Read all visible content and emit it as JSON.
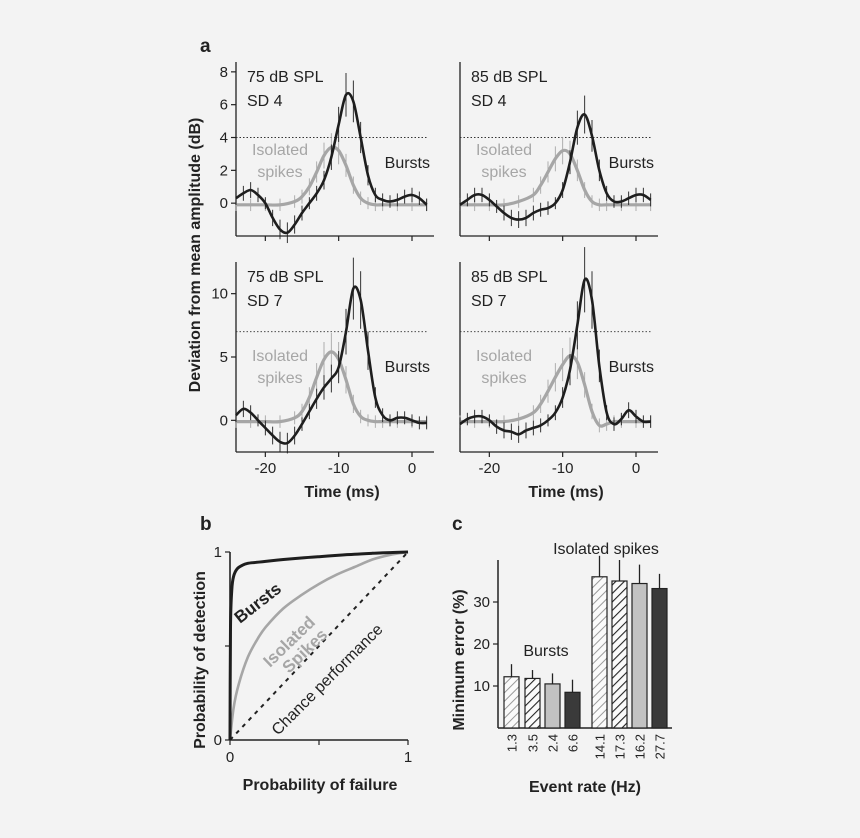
{
  "colors": {
    "background": "#f3f3f3",
    "bursts": "#1e1e1e",
    "isolated": "#a6a6a6",
    "axis": "#222222"
  },
  "panel_labels": {
    "a": "a",
    "b": "b",
    "c": "c"
  },
  "chart_data": [
    {
      "type": "line",
      "panel": "a",
      "ylabel": "Deviation from mean amplitude (dB)",
      "xlabel": "Time (ms)",
      "xticks": [
        -20,
        -10,
        0
      ],
      "xlim": [
        -24,
        3
      ],
      "subplots": [
        {
          "title_line1": "75 dB SPL",
          "title_line2": "SD 4",
          "ylim": [
            -2,
            8.6
          ],
          "yticks": [
            0,
            2,
            4,
            6,
            8
          ],
          "threshold": 4,
          "isolated_label_line1": "Isolated",
          "isolated_label_line2": "spikes",
          "bursts_label": "Bursts",
          "series": [
            {
              "name": "Bursts",
              "x": [
                -24,
                -23,
                -22,
                -21,
                -20,
                -19,
                -18,
                -17,
                -16,
                -15,
                -14,
                -13,
                -12,
                -11,
                -10,
                -9,
                -8,
                -7,
                -6,
                -5,
                -4,
                -3,
                -2,
                -1,
                0,
                1,
                2
              ],
              "values": [
                0.3,
                0.6,
                0.8,
                0.5,
                0,
                -0.9,
                -1.6,
                -1.8,
                -1.3,
                -0.6,
                0,
                0.6,
                1.4,
                2.8,
                4.8,
                6.6,
                6.2,
                4.0,
                1.7,
                0.5,
                0.2,
                0.1,
                0.2,
                0.4,
                0.5,
                0.3,
                -0.1
              ]
            },
            {
              "name": "Isolated spikes",
              "x": [
                -24,
                -22,
                -20,
                -18,
                -16,
                -15,
                -14,
                -13,
                -12,
                -11,
                -10,
                -9,
                -8,
                -7,
                -6,
                -5,
                -4,
                -2,
                0,
                2
              ],
              "values": [
                -0.1,
                -0.1,
                -0.1,
                -0.1,
                0.1,
                0.4,
                1.0,
                1.9,
                2.9,
                3.4,
                3.2,
                2.3,
                1.1,
                0.3,
                0,
                -0.1,
                -0.1,
                -0.1,
                -0.1,
                -0.1
              ]
            }
          ]
        },
        {
          "title_line1": "85 dB SPL",
          "title_line2": "SD 4",
          "ylim": [
            -2,
            8.6
          ],
          "yticks": [],
          "threshold": 4,
          "isolated_label_line1": "Isolated",
          "isolated_label_line2": "spikes",
          "bursts_label": "Bursts",
          "series": [
            {
              "name": "Bursts",
              "x": [
                -24,
                -23,
                -22,
                -21,
                -20,
                -19,
                -18,
                -17,
                -16,
                -15,
                -14,
                -13,
                -12,
                -11,
                -10,
                -9,
                -8,
                -7,
                -6,
                -5,
                -4,
                -3,
                -2,
                -1,
                0,
                1,
                2
              ],
              "values": [
                -0.1,
                0.2,
                0.5,
                0.5,
                0.2,
                -0.2,
                -0.6,
                -0.9,
                -1.0,
                -0.9,
                -0.6,
                -0.4,
                -0.3,
                0,
                0.8,
                2.5,
                4.6,
                5.4,
                4.1,
                2.0,
                0.6,
                0.1,
                0.1,
                0.3,
                0.5,
                0.5,
                0.2
              ]
            },
            {
              "name": "Isolated spikes",
              "x": [
                -24,
                -22,
                -20,
                -18,
                -16,
                -14,
                -13,
                -12,
                -11,
                -10,
                -9,
                -8,
                -7,
                -6,
                -5,
                -4,
                -2,
                0,
                2
              ],
              "values": [
                -0.1,
                -0.1,
                -0.1,
                -0.1,
                0.1,
                0.5,
                1.1,
                1.9,
                2.7,
                3.2,
                3.0,
                2.0,
                0.8,
                0.1,
                -0.1,
                -0.1,
                -0.1,
                -0.1,
                -0.1
              ]
            }
          ]
        },
        {
          "title_line1": "75 dB SPL",
          "title_line2": "SD 7",
          "ylim": [
            -2.5,
            12.5
          ],
          "yticks": [
            0,
            5,
            10
          ],
          "threshold": 7,
          "isolated_label_line1": "Isolated",
          "isolated_label_line2": "spikes",
          "bursts_label": "Bursts",
          "series": [
            {
              "name": "Bursts",
              "x": [
                -24,
                -23,
                -22,
                -21,
                -20,
                -19,
                -18,
                -17,
                -16,
                -15,
                -14,
                -13,
                -12,
                -11,
                -10,
                -9,
                -8,
                -7,
                -6,
                -5,
                -4,
                -3,
                -2,
                -1,
                0,
                1,
                2
              ],
              "values": [
                0.4,
                0.9,
                0.6,
                0,
                -0.6,
                -1.2,
                -1.7,
                -1.8,
                -1.2,
                -0.3,
                0.7,
                1.7,
                2.6,
                3.3,
                4.2,
                7.0,
                10.4,
                9.5,
                5.5,
                1.8,
                0.4,
                0,
                0.2,
                0.2,
                0,
                -0.2,
                -0.2
              ]
            },
            {
              "name": "Isolated spikes",
              "x": [
                -24,
                -22,
                -20,
                -18,
                -16,
                -15,
                -14,
                -13,
                -12,
                -11,
                -10,
                -9,
                -8,
                -7,
                -6,
                -5,
                -4,
                -2,
                0,
                2
              ],
              "values": [
                -0.1,
                -0.1,
                -0.1,
                -0.1,
                0.2,
                0.7,
                1.8,
                3.4,
                4.8,
                5.4,
                4.8,
                3.2,
                1.3,
                0.3,
                0,
                -0.1,
                -0.1,
                -0.1,
                -0.1,
                -0.1
              ]
            }
          ]
        },
        {
          "title_line1": "85 dB SPL",
          "title_line2": "SD 7",
          "ylim": [
            -2.5,
            12.5
          ],
          "yticks": [],
          "threshold": 7,
          "isolated_label_line1": "Isolated",
          "isolated_label_line2": "spikes",
          "bursts_label": "Bursts",
          "series": [
            {
              "name": "Bursts",
              "x": [
                -24,
                -23,
                -22,
                -21,
                -20,
                -19,
                -18,
                -17,
                -16,
                -15,
                -14,
                -13,
                -12,
                -11,
                -10,
                -9,
                -8,
                -7,
                -6,
                -5,
                -4,
                -3,
                -2,
                -1,
                0,
                1,
                2
              ],
              "values": [
                -0.3,
                0.1,
                0.3,
                0.3,
                0,
                -0.5,
                -0.8,
                -0.9,
                -1.1,
                -0.8,
                -0.6,
                -0.4,
                0,
                0.6,
                1.8,
                4.0,
                7.5,
                11.1,
                9.5,
                4.3,
                0.6,
                -0.3,
                0.1,
                0.8,
                0.3,
                -0.1,
                -0.1
              ]
            },
            {
              "name": "Isolated spikes",
              "x": [
                -24,
                -22,
                -20,
                -18,
                -16,
                -14,
                -13,
                -12,
                -11,
                -10,
                -9,
                -8,
                -7,
                -6,
                -5,
                -4,
                -3,
                -2,
                0,
                2
              ],
              "values": [
                -0.1,
                -0.1,
                -0.1,
                -0.1,
                0.1,
                0.6,
                1.3,
                2.3,
                3.4,
                4.4,
                5.1,
                4.6,
                2.8,
                0.7,
                -0.4,
                -0.3,
                -0.1,
                -0.1,
                -0.1,
                -0.1
              ]
            }
          ]
        }
      ]
    },
    {
      "type": "line",
      "panel": "b",
      "xlabel": "Probability of failure",
      "ylabel": "Probability of  detection",
      "xlim": [
        0,
        1
      ],
      "ylim": [
        0,
        1
      ],
      "xticks": [
        "0",
        "1"
      ],
      "yticks": [
        "0",
        "1"
      ],
      "series": [
        {
          "name": "Bursts",
          "x": [
            0,
            0.003,
            0.01,
            0.02,
            0.04,
            0.07,
            0.1,
            0.15,
            0.2,
            0.3,
            0.4,
            0.5,
            0.6,
            0.7,
            0.8,
            0.9,
            1
          ],
          "values": [
            0,
            0.6,
            0.8,
            0.87,
            0.91,
            0.93,
            0.94,
            0.945,
            0.95,
            0.96,
            0.968,
            0.975,
            0.982,
            0.988,
            0.993,
            0.997,
            1
          ]
        },
        {
          "name": "Isolated spikes",
          "x": [
            0,
            0.02,
            0.05,
            0.1,
            0.15,
            0.2,
            0.3,
            0.4,
            0.5,
            0.6,
            0.7,
            0.8,
            0.9,
            1
          ],
          "values": [
            0,
            0.17,
            0.3,
            0.44,
            0.53,
            0.6,
            0.7,
            0.77,
            0.83,
            0.88,
            0.92,
            0.96,
            0.985,
            1
          ]
        },
        {
          "name": "Chance performance",
          "x": [
            0,
            1
          ],
          "values": [
            0,
            1
          ]
        }
      ],
      "labels": {
        "bursts": "Bursts",
        "isolated_line1": "Isolated",
        "isolated_line2": "Spikes",
        "chance": "Chance performance"
      }
    },
    {
      "type": "bar",
      "panel": "c",
      "xlabel": "Event rate (Hz)",
      "ylabel": "Minimum error (%)",
      "ylim": [
        0,
        40
      ],
      "yticks": [
        10,
        20,
        30
      ],
      "categories": [
        "1.3",
        "3.5",
        "2.4",
        "6.6",
        "14.1",
        "17.3",
        "16.2",
        "27.7"
      ],
      "values": [
        12.2,
        11.8,
        10.5,
        8.5,
        36.0,
        35.0,
        34.4,
        33.2
      ],
      "errors": [
        3.0,
        2.0,
        2.5,
        3.0,
        5.0,
        5.0,
        4.5,
        3.5
      ],
      "fills": [
        "hatch-light",
        "hatch-dark",
        "light",
        "dark",
        "hatch-light",
        "hatch-dark",
        "light",
        "dark"
      ],
      "group_labels": {
        "bursts": "Bursts",
        "isolated": "Isolated spikes"
      }
    }
  ]
}
